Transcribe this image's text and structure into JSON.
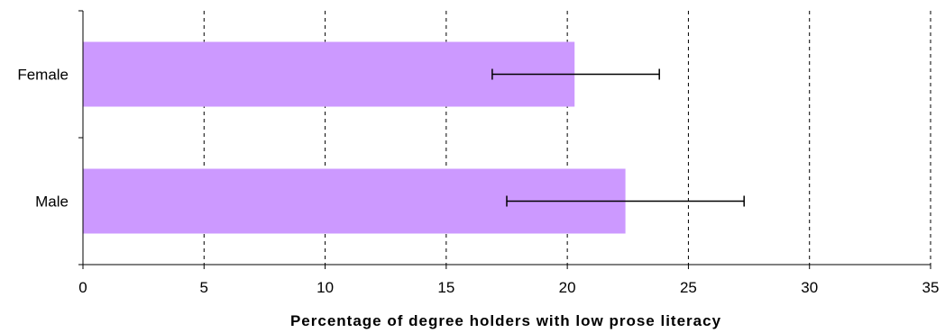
{
  "chart_data": {
    "type": "bar",
    "orientation": "horizontal",
    "categories": [
      "Female",
      "Male"
    ],
    "values": [
      20.3,
      22.4
    ],
    "error_bars": [
      {
        "low": 16.9,
        "high": 23.8
      },
      {
        "low": 17.5,
        "high": 27.3
      }
    ],
    "xlabel": "Percentage of degree holders with low prose literacy",
    "ylabel": "",
    "xlim": [
      0,
      35
    ],
    "xticks": [
      "0",
      "5",
      "10",
      "15",
      "20",
      "25",
      "30",
      "35"
    ],
    "grid": "vertical dashed",
    "bar_color": "#cc99ff"
  }
}
